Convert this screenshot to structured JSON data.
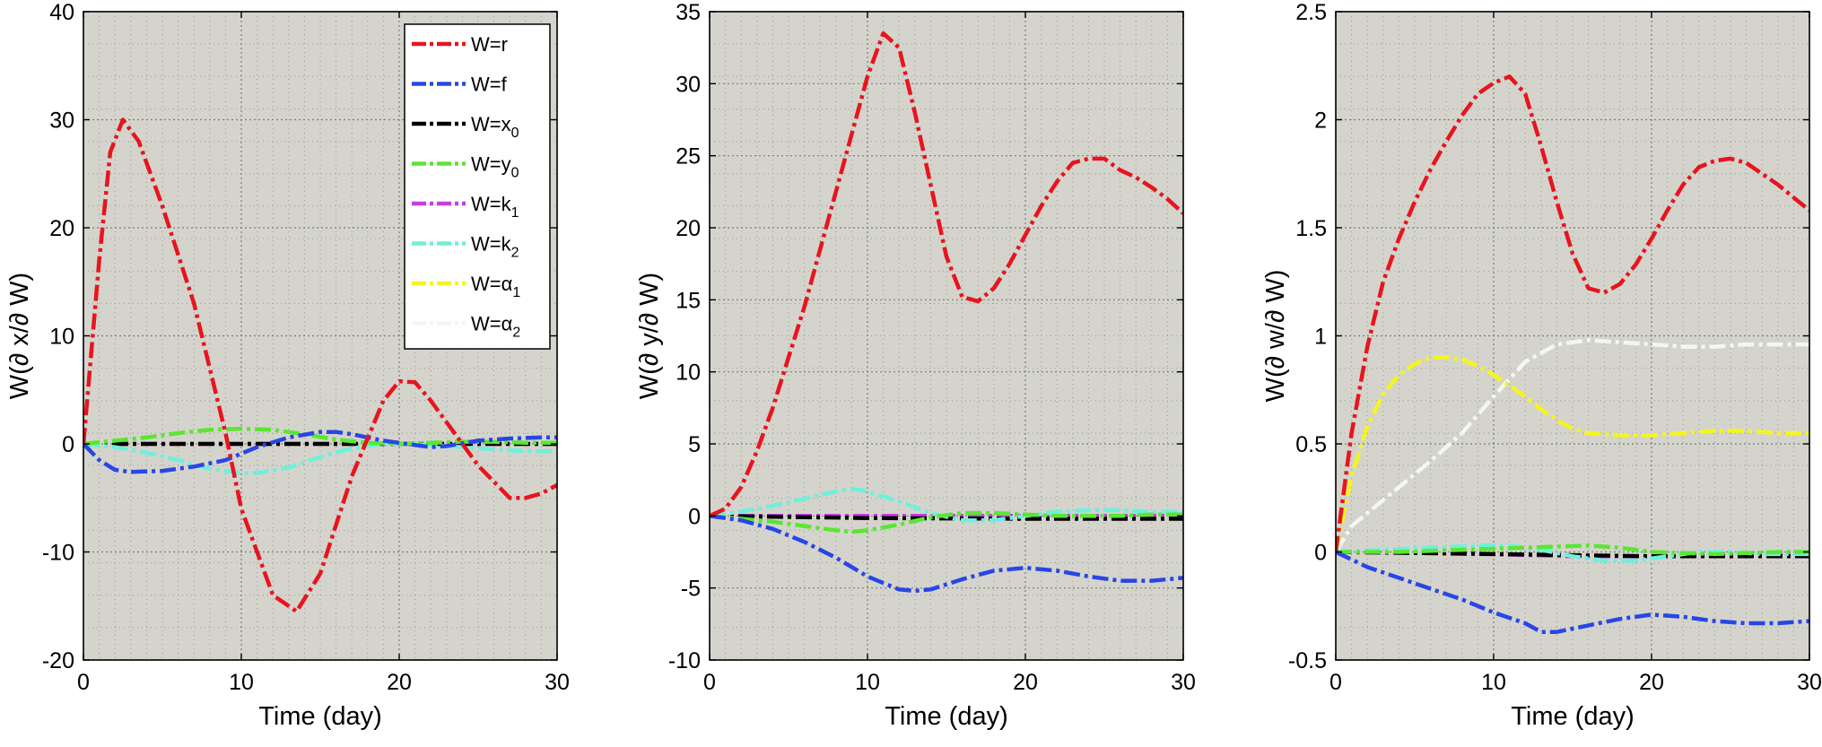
{
  "colors": {
    "plot_bg": "#d4d4cc",
    "grid": "#9a9a9a",
    "axis": "#000000"
  },
  "legend": {
    "entries": [
      {
        "key": "r",
        "pre": "W=",
        "main": "r",
        "sub": "",
        "color": "#e8141e"
      },
      {
        "key": "f",
        "pre": "W=",
        "main": "f",
        "sub": "",
        "color": "#2846e6"
      },
      {
        "key": "x0",
        "pre": "W=",
        "main": "x",
        "sub": "0",
        "color": "#000000"
      },
      {
        "key": "y0",
        "pre": "W=",
        "main": "y",
        "sub": "0",
        "color": "#5ae632"
      },
      {
        "key": "k1",
        "pre": "W=",
        "main": "k",
        "sub": "1",
        "color": "#c83ce6"
      },
      {
        "key": "k2",
        "pre": "W=",
        "main": "k",
        "sub": "2",
        "color": "#6ef0dc"
      },
      {
        "key": "a1",
        "pre": "W=",
        "main": "α",
        "sub": "1",
        "color": "#f5f51e"
      },
      {
        "key": "a2",
        "pre": "W=",
        "main": "α",
        "sub": "2",
        "color": "#f5f5f5"
      }
    ]
  },
  "chart_data": [
    {
      "type": "line",
      "xlabel": "Time (day)",
      "ylabel": "W(∂ x/∂ W)",
      "xlim": [
        0,
        30
      ],
      "ylim": [
        -20,
        40
      ],
      "xticks": [
        0,
        10,
        20,
        30
      ],
      "yticks": [
        -20,
        -10,
        0,
        10,
        20,
        30,
        40
      ],
      "series": [
        {
          "key": "r",
          "x": [
            0,
            1,
            1.7,
            2.5,
            3.5,
            5,
            7,
            9,
            10,
            11,
            12,
            13.5,
            15,
            17,
            19,
            20,
            21,
            22,
            23,
            25,
            27,
            28,
            29,
            30
          ],
          "y": [
            0,
            17,
            27,
            30,
            28,
            22,
            13,
            1,
            -6,
            -10,
            -14,
            -15.5,
            -12,
            -3,
            4,
            5.8,
            5.7,
            4,
            2,
            -2,
            -5,
            -5,
            -4.6,
            -3.8
          ]
        },
        {
          "key": "f",
          "x": [
            0,
            1,
            2,
            3,
            5,
            7,
            9,
            11,
            13,
            15,
            16,
            17,
            19,
            21,
            22,
            23,
            25,
            27,
            29,
            30
          ],
          "y": [
            0,
            -1.5,
            -2.4,
            -2.6,
            -2.5,
            -2.1,
            -1.5,
            -0.3,
            0.6,
            1.1,
            1.1,
            0.9,
            0.3,
            -0.1,
            -0.3,
            -0.2,
            0.3,
            0.5,
            0.6,
            0.6
          ]
        },
        {
          "key": "x0",
          "x": [
            0,
            10,
            20,
            30
          ],
          "y": [
            0,
            0,
            0,
            0
          ]
        },
        {
          "key": "y0",
          "x": [
            0,
            2,
            4,
            6,
            8,
            10,
            12,
            14,
            16,
            18,
            20,
            22,
            24,
            26,
            28,
            30
          ],
          "y": [
            0,
            0.3,
            0.6,
            1.0,
            1.3,
            1.4,
            1.3,
            0.9,
            0.4,
            0.1,
            0,
            0.1,
            0.2,
            0.2,
            0.1,
            0.1
          ]
        },
        {
          "key": "k1",
          "x": [
            0,
            10,
            20,
            30
          ],
          "y": [
            0,
            0,
            0,
            0
          ]
        },
        {
          "key": "k2",
          "x": [
            0,
            2,
            4,
            6,
            8,
            10,
            11,
            13,
            15,
            17,
            19,
            21,
            23,
            25,
            27,
            29,
            30
          ],
          "y": [
            0,
            -0.3,
            -0.8,
            -1.5,
            -2.3,
            -2.7,
            -2.7,
            -2.2,
            -1.2,
            -0.4,
            0,
            0,
            -0.2,
            -0.4,
            -0.6,
            -0.7,
            -0.7
          ]
        },
        {
          "key": "a1",
          "x": [
            0,
            10,
            20,
            30
          ],
          "y": [
            0,
            0,
            0,
            0
          ]
        },
        {
          "key": "a2",
          "x": [
            0,
            10,
            20,
            30
          ],
          "y": [
            0,
            0,
            0,
            0
          ]
        }
      ]
    },
    {
      "type": "line",
      "xlabel": "Time (day)",
      "ylabel": "W(∂ y/∂ W)",
      "xlim": [
        0,
        30
      ],
      "ylim": [
        -10,
        35
      ],
      "xticks": [
        0,
        10,
        20,
        30
      ],
      "yticks": [
        -10,
        -5,
        0,
        5,
        10,
        15,
        20,
        25,
        30,
        35
      ],
      "series": [
        {
          "key": "r",
          "x": [
            0,
            1,
            2,
            3,
            4,
            5,
            6,
            7,
            8,
            9,
            10,
            11,
            12,
            13,
            14,
            15,
            16,
            17,
            18,
            19,
            20,
            21,
            22,
            23,
            24,
            25,
            26,
            27,
            28,
            29,
            30
          ],
          "y": [
            0,
            0.5,
            2,
            4.5,
            7.5,
            11,
            14.5,
            18.5,
            22.5,
            26.5,
            30.5,
            33.5,
            32.5,
            28,
            23,
            18,
            15.2,
            14.9,
            15.8,
            17.5,
            19.5,
            21.5,
            23.2,
            24.5,
            24.8,
            24.8,
            24,
            23.5,
            22.8,
            22,
            21
          ]
        },
        {
          "key": "f",
          "x": [
            0,
            2,
            4,
            6,
            8,
            10,
            12,
            13,
            14,
            16,
            18,
            20,
            22,
            24,
            26,
            28,
            30
          ],
          "y": [
            0,
            -0.3,
            -0.9,
            -1.8,
            -2.9,
            -4.2,
            -5.1,
            -5.2,
            -5.1,
            -4.4,
            -3.8,
            -3.6,
            -3.8,
            -4.2,
            -4.5,
            -4.5,
            -4.3
          ]
        },
        {
          "key": "x0",
          "x": [
            0,
            10,
            20,
            30
          ],
          "y": [
            0,
            -0.15,
            -0.2,
            -0.2
          ]
        },
        {
          "key": "y0",
          "x": [
            0,
            2,
            4,
            6,
            8,
            9,
            10,
            12,
            14,
            16,
            18,
            20,
            22,
            24,
            26,
            28,
            30
          ],
          "y": [
            0,
            -0.2,
            -0.4,
            -0.7,
            -1.0,
            -1.1,
            -1.0,
            -0.6,
            -0.1,
            0.2,
            0.2,
            0.1,
            0,
            0,
            0,
            0.1,
            0.1
          ]
        },
        {
          "key": "k1",
          "x": [
            0,
            10,
            20,
            30
          ],
          "y": [
            0,
            0,
            0,
            0
          ]
        },
        {
          "key": "k2",
          "x": [
            0,
            2,
            4,
            6,
            8,
            9,
            10,
            12,
            14,
            16,
            18,
            20,
            22,
            24,
            26,
            28,
            30
          ],
          "y": [
            0,
            0.3,
            0.7,
            1.2,
            1.7,
            1.9,
            1.7,
            1.0,
            0.2,
            -0.3,
            -0.3,
            0,
            0.3,
            0.4,
            0.4,
            0.3,
            0.3
          ]
        },
        {
          "key": "a1",
          "x": [
            0,
            10,
            20,
            30
          ],
          "y": [
            0,
            0,
            0,
            0
          ]
        },
        {
          "key": "a2",
          "x": [
            0,
            10,
            20,
            30
          ],
          "y": [
            0,
            0,
            0,
            0
          ]
        }
      ]
    },
    {
      "type": "line",
      "xlabel": "Time (day)",
      "ylabel": "W(∂ w/∂ W)",
      "xlim": [
        0,
        30
      ],
      "ylim": [
        -0.5,
        2.5
      ],
      "xticks": [
        0,
        10,
        20,
        30
      ],
      "yticks": [
        -0.5,
        0,
        0.5,
        1,
        1.5,
        2,
        2.5
      ],
      "series": [
        {
          "key": "r",
          "x": [
            0,
            1,
            2,
            3,
            4,
            5,
            6,
            7,
            8,
            9,
            10,
            11,
            12,
            13,
            14,
            15,
            16,
            17,
            18,
            19,
            20,
            21,
            22,
            23,
            24,
            25,
            26,
            27,
            28,
            29,
            30
          ],
          "y": [
            0,
            0.55,
            0.95,
            1.25,
            1.45,
            1.62,
            1.77,
            1.9,
            2.02,
            2.12,
            2.17,
            2.2,
            2.12,
            1.88,
            1.62,
            1.38,
            1.22,
            1.2,
            1.24,
            1.33,
            1.45,
            1.58,
            1.7,
            1.78,
            1.81,
            1.82,
            1.8,
            1.75,
            1.7,
            1.64,
            1.58
          ]
        },
        {
          "key": "f",
          "x": [
            0,
            2,
            4,
            6,
            8,
            10,
            12,
            13,
            14,
            16,
            18,
            20,
            22,
            24,
            26,
            28,
            30
          ],
          "y": [
            0,
            -0.07,
            -0.12,
            -0.17,
            -0.22,
            -0.28,
            -0.33,
            -0.37,
            -0.37,
            -0.34,
            -0.31,
            -0.29,
            -0.3,
            -0.32,
            -0.33,
            -0.33,
            -0.32
          ]
        },
        {
          "key": "x0",
          "x": [
            0,
            10,
            20,
            30
          ],
          "y": [
            0,
            -0.01,
            -0.02,
            -0.02
          ]
        },
        {
          "key": "y0",
          "x": [
            0,
            4,
            8,
            12,
            16,
            18,
            20,
            24,
            28,
            30
          ],
          "y": [
            0,
            0,
            0.01,
            0.02,
            0.03,
            0.02,
            0,
            -0.01,
            0,
            0
          ]
        },
        {
          "key": "k1",
          "x": [
            0,
            5,
            10,
            15,
            20,
            25,
            30
          ],
          "y": [
            0,
            0,
            -0.01,
            -0.02,
            -0.02,
            -0.01,
            0
          ]
        },
        {
          "key": "k2",
          "x": [
            0,
            3,
            6,
            9,
            11,
            13,
            15,
            17,
            19,
            21,
            23,
            25,
            27,
            30
          ],
          "y": [
            0,
            0.01,
            0.02,
            0.03,
            0.03,
            0.01,
            -0.02,
            -0.04,
            -0.04,
            -0.02,
            0,
            0,
            -0.01,
            -0.01
          ]
        },
        {
          "key": "a1",
          "x": [
            0,
            1,
            2,
            3,
            4,
            5,
            6,
            7,
            8,
            9,
            10,
            11,
            12,
            13,
            14,
            15,
            16,
            18,
            20,
            22,
            24,
            26,
            28,
            30
          ],
          "y": [
            0,
            0.35,
            0.58,
            0.73,
            0.82,
            0.87,
            0.9,
            0.9,
            0.89,
            0.86,
            0.82,
            0.77,
            0.72,
            0.66,
            0.61,
            0.57,
            0.55,
            0.54,
            0.54,
            0.55,
            0.56,
            0.56,
            0.55,
            0.55
          ]
        },
        {
          "key": "a2",
          "x": [
            0,
            1,
            2,
            4,
            6,
            8,
            10,
            12,
            14,
            16,
            18,
            20,
            22,
            24,
            26,
            28,
            30
          ],
          "y": [
            0,
            0.12,
            0.18,
            0.3,
            0.42,
            0.55,
            0.72,
            0.88,
            0.96,
            0.98,
            0.97,
            0.96,
            0.95,
            0.95,
            0.96,
            0.96,
            0.96
          ]
        }
      ]
    }
  ]
}
